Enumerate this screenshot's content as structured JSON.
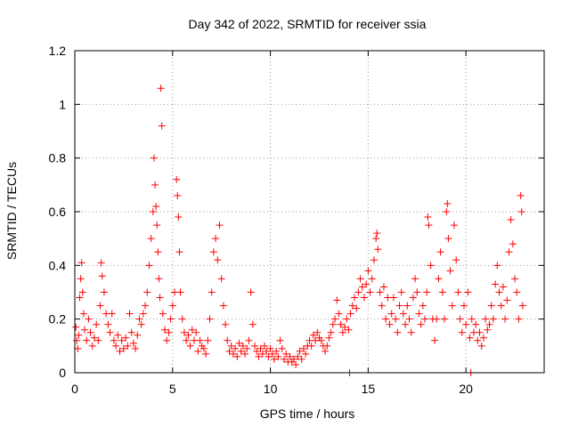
{
  "chart_data": {
    "type": "scatter",
    "title": "Day 342 of 2022, SRMTID for receiver ssia",
    "xlabel": "GPS time / hours",
    "ylabel": "SRMTID / TECUs",
    "xlim": [
      0,
      24
    ],
    "ylim": [
      0,
      1.2
    ],
    "xticks": [
      0,
      5,
      10,
      15,
      20
    ],
    "yticks": [
      0,
      0.2,
      0.4,
      0.6,
      0.8,
      1,
      1.2
    ],
    "xtick_labels": [
      "0",
      "5",
      "10",
      "15",
      "20"
    ],
    "ytick_labels": [
      "0",
      "0.2",
      "0.4",
      "0.6",
      "0.8",
      "1",
      "1.2"
    ],
    "grid": true,
    "marker": "+",
    "color": "#ff0000",
    "series": [
      {
        "name": "SRMTID",
        "points": [
          [
            0.05,
            0.17
          ],
          [
            0.1,
            0.12
          ],
          [
            0.15,
            0.09
          ],
          [
            0.2,
            0.14
          ],
          [
            0.25,
            0.28
          ],
          [
            0.3,
            0.35
          ],
          [
            0.35,
            0.41
          ],
          [
            0.4,
            0.3
          ],
          [
            0.45,
            0.22
          ],
          [
            0.5,
            0.16
          ],
          [
            0.6,
            0.12
          ],
          [
            0.7,
            0.2
          ],
          [
            0.8,
            0.15
          ],
          [
            0.9,
            0.1
          ],
          [
            1.0,
            0.13
          ],
          [
            1.1,
            0.18
          ],
          [
            1.2,
            0.12
          ],
          [
            1.3,
            0.25
          ],
          [
            1.35,
            0.41
          ],
          [
            1.4,
            0.36
          ],
          [
            1.5,
            0.3
          ],
          [
            1.6,
            0.22
          ],
          [
            1.7,
            0.18
          ],
          [
            1.8,
            0.15
          ],
          [
            1.9,
            0.22
          ],
          [
            2.0,
            0.12
          ],
          [
            2.1,
            0.1
          ],
          [
            2.2,
            0.14
          ],
          [
            2.3,
            0.08
          ],
          [
            2.4,
            0.12
          ],
          [
            2.5,
            0.09
          ],
          [
            2.6,
            0.13
          ],
          [
            2.7,
            0.1
          ],
          [
            2.8,
            0.22
          ],
          [
            2.9,
            0.15
          ],
          [
            3.0,
            0.11
          ],
          [
            3.1,
            0.09
          ],
          [
            3.2,
            0.14
          ],
          [
            3.3,
            0.2
          ],
          [
            3.4,
            0.18
          ],
          [
            3.5,
            0.22
          ],
          [
            3.6,
            0.25
          ],
          [
            3.7,
            0.3
          ],
          [
            3.8,
            0.4
          ],
          [
            3.9,
            0.5
          ],
          [
            4.0,
            0.6
          ],
          [
            4.05,
            0.8
          ],
          [
            4.1,
            0.7
          ],
          [
            4.15,
            0.62
          ],
          [
            4.2,
            0.55
          ],
          [
            4.25,
            0.45
          ],
          [
            4.3,
            0.35
          ],
          [
            4.35,
            0.28
          ],
          [
            4.4,
            1.06
          ],
          [
            4.45,
            0.92
          ],
          [
            4.5,
            0.22
          ],
          [
            4.6,
            0.16
          ],
          [
            4.7,
            0.12
          ],
          [
            4.8,
            0.15
          ],
          [
            4.9,
            0.2
          ],
          [
            5.0,
            0.25
          ],
          [
            5.1,
            0.3
          ],
          [
            5.2,
            0.72
          ],
          [
            5.25,
            0.66
          ],
          [
            5.3,
            0.58
          ],
          [
            5.35,
            0.45
          ],
          [
            5.4,
            0.3
          ],
          [
            5.5,
            0.2
          ],
          [
            5.6,
            0.15
          ],
          [
            5.7,
            0.12
          ],
          [
            5.8,
            0.14
          ],
          [
            5.9,
            0.1
          ],
          [
            6.0,
            0.16
          ],
          [
            6.1,
            0.12
          ],
          [
            6.2,
            0.15
          ],
          [
            6.3,
            0.08
          ],
          [
            6.4,
            0.12
          ],
          [
            6.5,
            0.1
          ],
          [
            6.6,
            0.09
          ],
          [
            6.7,
            0.07
          ],
          [
            6.8,
            0.12
          ],
          [
            6.9,
            0.2
          ],
          [
            7.0,
            0.3
          ],
          [
            7.1,
            0.45
          ],
          [
            7.2,
            0.5
          ],
          [
            7.3,
            0.42
          ],
          [
            7.4,
            0.55
          ],
          [
            7.5,
            0.35
          ],
          [
            7.6,
            0.25
          ],
          [
            7.7,
            0.18
          ],
          [
            7.8,
            0.12
          ],
          [
            7.9,
            0.08
          ],
          [
            8.0,
            0.1
          ],
          [
            8.1,
            0.07
          ],
          [
            8.2,
            0.09
          ],
          [
            8.3,
            0.06
          ],
          [
            8.4,
            0.11
          ],
          [
            8.5,
            0.08
          ],
          [
            8.6,
            0.1
          ],
          [
            8.7,
            0.07
          ],
          [
            8.8,
            0.09
          ],
          [
            8.9,
            0.12
          ],
          [
            9.0,
            0.3
          ],
          [
            9.1,
            0.18
          ],
          [
            9.2,
            0.1
          ],
          [
            9.3,
            0.08
          ],
          [
            9.4,
            0.06
          ],
          [
            9.5,
            0.09
          ],
          [
            9.6,
            0.07
          ],
          [
            9.7,
            0.1
          ],
          [
            9.8,
            0.08
          ],
          [
            9.9,
            0.06
          ],
          [
            10.0,
            0.09
          ],
          [
            10.1,
            0.07
          ],
          [
            10.2,
            0.05
          ],
          [
            10.3,
            0.08
          ],
          [
            10.4,
            0.06
          ],
          [
            10.5,
            0.12
          ],
          [
            10.6,
            0.09
          ],
          [
            10.7,
            0.05
          ],
          [
            10.8,
            0.07
          ],
          [
            10.9,
            0.04
          ],
          [
            11.0,
            0.06
          ],
          [
            11.1,
            0.04
          ],
          [
            11.2,
            0.05
          ],
          [
            11.3,
            0.03
          ],
          [
            11.4,
            0.06
          ],
          [
            11.5,
            0.08
          ],
          [
            11.6,
            0.05
          ],
          [
            11.7,
            0.09
          ],
          [
            11.8,
            0.07
          ],
          [
            11.9,
            0.1
          ],
          [
            12.0,
            0.12
          ],
          [
            12.1,
            0.1
          ],
          [
            12.2,
            0.14
          ],
          [
            12.3,
            0.12
          ],
          [
            12.4,
            0.15
          ],
          [
            12.5,
            0.13
          ],
          [
            12.6,
            0.12
          ],
          [
            12.7,
            0.1
          ],
          [
            12.8,
            0.08
          ],
          [
            12.9,
            0.1
          ],
          [
            13.0,
            0.13
          ],
          [
            13.1,
            0.15
          ],
          [
            13.2,
            0.18
          ],
          [
            13.3,
            0.2
          ],
          [
            13.4,
            0.27
          ],
          [
            13.5,
            0.22
          ],
          [
            13.6,
            0.18
          ],
          [
            13.7,
            0.15
          ],
          [
            13.8,
            0.17
          ],
          [
            13.9,
            0.2
          ],
          [
            14.0,
            0.16
          ],
          [
            14.05,
            0.0
          ],
          [
            14.1,
            0.22
          ],
          [
            14.2,
            0.25
          ],
          [
            14.3,
            0.28
          ],
          [
            14.4,
            0.24
          ],
          [
            14.5,
            0.3
          ],
          [
            14.6,
            0.35
          ],
          [
            14.7,
            0.32
          ],
          [
            14.8,
            0.28
          ],
          [
            14.9,
            0.33
          ],
          [
            15.0,
            0.38
          ],
          [
            15.1,
            0.3
          ],
          [
            15.2,
            0.35
          ],
          [
            15.3,
            0.42
          ],
          [
            15.4,
            0.5
          ],
          [
            15.45,
            0.52
          ],
          [
            15.5,
            0.46
          ],
          [
            15.6,
            0.3
          ],
          [
            15.7,
            0.25
          ],
          [
            15.8,
            0.32
          ],
          [
            15.9,
            0.2
          ],
          [
            16.0,
            0.28
          ],
          [
            16.1,
            0.18
          ],
          [
            16.2,
            0.22
          ],
          [
            16.3,
            0.28
          ],
          [
            16.4,
            0.2
          ],
          [
            16.5,
            0.15
          ],
          [
            16.6,
            0.25
          ],
          [
            16.7,
            0.3
          ],
          [
            16.8,
            0.22
          ],
          [
            16.9,
            0.18
          ],
          [
            17.0,
            0.25
          ],
          [
            17.1,
            0.2
          ],
          [
            17.2,
            0.15
          ],
          [
            17.3,
            0.28
          ],
          [
            17.4,
            0.35
          ],
          [
            17.5,
            0.3
          ],
          [
            17.6,
            0.22
          ],
          [
            17.7,
            0.18
          ],
          [
            17.8,
            0.25
          ],
          [
            17.9,
            0.2
          ],
          [
            18.0,
            0.3
          ],
          [
            18.05,
            0.58
          ],
          [
            18.1,
            0.55
          ],
          [
            18.2,
            0.4
          ],
          [
            18.3,
            0.2
          ],
          [
            18.4,
            0.12
          ],
          [
            18.5,
            0.2
          ],
          [
            18.6,
            0.35
          ],
          [
            18.7,
            0.45
          ],
          [
            18.8,
            0.3
          ],
          [
            18.9,
            0.2
          ],
          [
            19.0,
            0.6
          ],
          [
            19.05,
            0.63
          ],
          [
            19.1,
            0.5
          ],
          [
            19.2,
            0.38
          ],
          [
            19.3,
            0.25
          ],
          [
            19.4,
            0.55
          ],
          [
            19.5,
            0.42
          ],
          [
            19.6,
            0.3
          ],
          [
            19.7,
            0.2
          ],
          [
            19.8,
            0.15
          ],
          [
            19.9,
            0.25
          ],
          [
            20.0,
            0.18
          ],
          [
            20.1,
            0.3
          ],
          [
            20.2,
            0.13
          ],
          [
            20.25,
            0.0
          ],
          [
            20.3,
            0.2
          ],
          [
            20.4,
            0.15
          ],
          [
            20.5,
            0.18
          ],
          [
            20.6,
            0.12
          ],
          [
            20.7,
            0.15
          ],
          [
            20.8,
            0.1
          ],
          [
            20.9,
            0.13
          ],
          [
            21.0,
            0.2
          ],
          [
            21.1,
            0.16
          ],
          [
            21.2,
            0.18
          ],
          [
            21.3,
            0.25
          ],
          [
            21.4,
            0.2
          ],
          [
            21.5,
            0.33
          ],
          [
            21.6,
            0.4
          ],
          [
            21.7,
            0.3
          ],
          [
            21.8,
            0.25
          ],
          [
            21.9,
            0.32
          ],
          [
            22.0,
            0.2
          ],
          [
            22.1,
            0.27
          ],
          [
            22.2,
            0.45
          ],
          [
            22.3,
            0.57
          ],
          [
            22.4,
            0.48
          ],
          [
            22.5,
            0.35
          ],
          [
            22.6,
            0.3
          ],
          [
            22.7,
            0.2
          ],
          [
            22.8,
            0.66
          ],
          [
            22.85,
            0.6
          ],
          [
            22.9,
            0.25
          ]
        ]
      }
    ]
  }
}
